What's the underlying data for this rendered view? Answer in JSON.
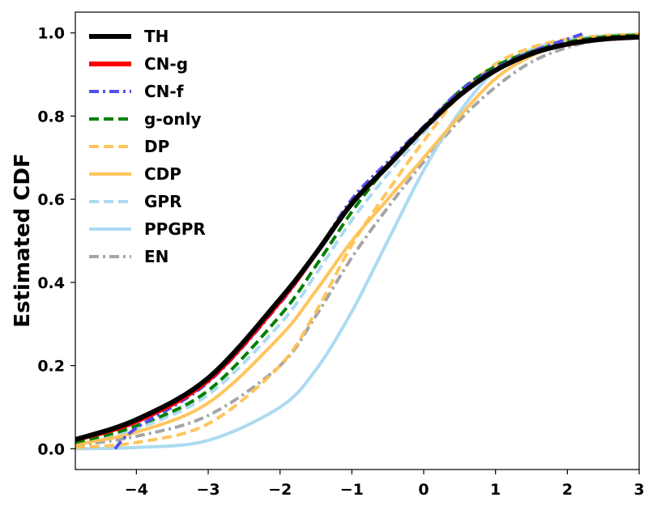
{
  "chart_data": {
    "type": "line",
    "title": "",
    "xlabel": "",
    "ylabel": "Estimated CDF",
    "xlim": [
      -4.85,
      3.0
    ],
    "ylim": [
      -0.05,
      1.05
    ],
    "xticks": [
      -4,
      -3,
      -2,
      -1,
      0,
      1,
      2,
      3
    ],
    "xtick_labels": [
      "−4",
      "−3",
      "−2",
      "−1",
      "0",
      "1",
      "2",
      "3"
    ],
    "yticks": [
      0.0,
      0.2,
      0.4,
      0.6,
      0.8,
      1.0
    ],
    "ytick_labels": [
      "0.0",
      "0.2",
      "0.4",
      "0.6",
      "0.8",
      "1.0"
    ],
    "grid": false,
    "legend_position": "top-left",
    "series": [
      {
        "name": "TH",
        "color": "#000000",
        "dash": "solid",
        "width": 6,
        "opacity": 1,
        "x": [
          -4.85,
          -4,
          -3,
          -2,
          -1.5,
          -1,
          -0.5,
          0,
          0.5,
          1,
          1.5,
          2,
          2.5,
          3
        ],
        "y": [
          0.022,
          0.07,
          0.17,
          0.36,
          0.47,
          0.59,
          0.68,
          0.77,
          0.85,
          0.91,
          0.95,
          0.973,
          0.985,
          0.99
        ]
      },
      {
        "name": "CN-g",
        "color": "#ff0000",
        "dash": "solid",
        "width": 6,
        "opacity": 1,
        "x": [
          -4.85,
          -4,
          -3,
          -2,
          -1.5,
          -1,
          -0.5,
          0,
          0.5,
          1,
          1.5,
          2,
          2.5,
          3
        ],
        "y": [
          0.022,
          0.066,
          0.165,
          0.355,
          0.47,
          0.59,
          0.68,
          0.77,
          0.85,
          0.91,
          0.95,
          0.973,
          0.985,
          0.99
        ]
      },
      {
        "name": "CN-f",
        "color": "#5050ee",
        "dash": "dashdot",
        "width": 4,
        "opacity": 1,
        "x": [
          -4.3,
          -4,
          -3,
          -2,
          -1.5,
          -1,
          -0.5,
          0,
          0.5,
          1,
          1.5,
          2,
          2.25
        ],
        "y": [
          0.0,
          0.05,
          0.16,
          0.35,
          0.47,
          0.6,
          0.69,
          0.775,
          0.86,
          0.915,
          0.955,
          0.985,
          1.0
        ]
      },
      {
        "name": "g-only",
        "color": "#008000",
        "dash": "dashed",
        "width": 4,
        "opacity": 1,
        "x": [
          -4.85,
          -4,
          -3,
          -2,
          -1.5,
          -1,
          -0.5,
          0,
          0.5,
          1,
          1.5,
          2,
          2.5,
          3
        ],
        "y": [
          0.015,
          0.055,
          0.14,
          0.32,
          0.44,
          0.57,
          0.68,
          0.77,
          0.86,
          0.92,
          0.955,
          0.978,
          0.99,
          0.995
        ]
      },
      {
        "name": "DP",
        "color": "#ffbf4d",
        "dash": "dashed",
        "width": 4,
        "opacity": 0.9,
        "x": [
          -4.85,
          -4,
          -3,
          -2,
          -1.5,
          -1,
          -0.5,
          0,
          0.5,
          1,
          1.5,
          2,
          2.5,
          3
        ],
        "y": [
          0.003,
          0.015,
          0.06,
          0.2,
          0.33,
          0.49,
          0.62,
          0.74,
          0.85,
          0.925,
          0.965,
          0.985,
          0.993,
          0.997
        ]
      },
      {
        "name": "CDP",
        "color": "#ffbf4d",
        "dash": "solid",
        "width": 4,
        "opacity": 0.9,
        "x": [
          -4.85,
          -4,
          -3,
          -2,
          -1.5,
          -1,
          -0.5,
          0,
          0.5,
          1,
          1.5,
          2,
          2.5,
          3
        ],
        "y": [
          0.01,
          0.04,
          0.11,
          0.27,
          0.38,
          0.5,
          0.6,
          0.7,
          0.8,
          0.89,
          0.945,
          0.975,
          0.99,
          0.995
        ]
      },
      {
        "name": "GPR",
        "color": "#a8d8f0",
        "dash": "dashed",
        "width": 4,
        "opacity": 0.95,
        "x": [
          -4.85,
          -4,
          -3,
          -2,
          -1.5,
          -1,
          -0.5,
          0,
          0.5,
          1,
          1.5,
          2,
          2.5,
          3
        ],
        "y": [
          0.012,
          0.048,
          0.13,
          0.3,
          0.42,
          0.55,
          0.66,
          0.76,
          0.85,
          0.915,
          0.955,
          0.978,
          0.99,
          0.995
        ]
      },
      {
        "name": "PPGPR",
        "color": "#a8d8f0",
        "dash": "solid",
        "width": 4,
        "opacity": 0.95,
        "x": [
          -4.85,
          -4,
          -3,
          -2,
          -1.5,
          -1,
          -0.5,
          0,
          0.5,
          1,
          1.5,
          2,
          2.5,
          3
        ],
        "y": [
          0.0,
          0.003,
          0.02,
          0.1,
          0.19,
          0.33,
          0.5,
          0.67,
          0.81,
          0.91,
          0.96,
          0.983,
          0.993,
          0.997
        ]
      },
      {
        "name": "EN",
        "color": "#a0a0a0",
        "dash": "dashdot",
        "width": 4,
        "opacity": 0.95,
        "x": [
          -4.85,
          -4,
          -3,
          -2,
          -1.5,
          -1,
          -0.5,
          0,
          0.5,
          1,
          1.5,
          2,
          2.5,
          3
        ],
        "y": [
          0.008,
          0.03,
          0.08,
          0.2,
          0.32,
          0.46,
          0.58,
          0.69,
          0.79,
          0.87,
          0.93,
          0.965,
          0.985,
          0.993
        ]
      }
    ]
  }
}
